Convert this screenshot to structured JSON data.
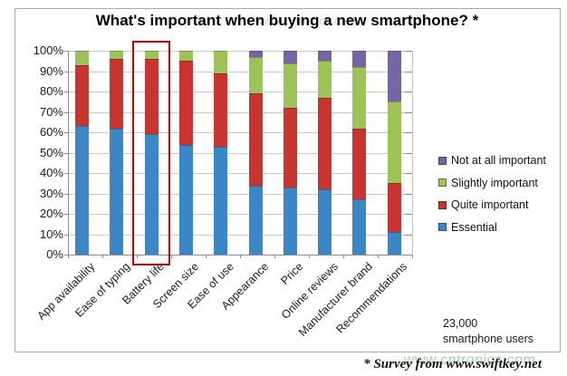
{
  "watermarks": {
    "top": "www.cntronics.com",
    "bottom": "www.cntronics.com"
  },
  "footer_note": "* Survey from www.swiftkey.net",
  "highlight": {
    "category": "Battery life",
    "color": "#CC0000"
  },
  "chart_data": {
    "type": "bar",
    "stacked": true,
    "title": "What's important when buying a new smartphone? *",
    "categories": [
      "App availability",
      "Ease of typing",
      "Battery life",
      "Screen size",
      "Ease of use",
      "Appearance",
      "Price",
      "Online reviews",
      "Manufacturer brand",
      "Recommendations"
    ],
    "series": [
      {
        "name": "Essential",
        "color": "#3A87C8",
        "values": [
          63,
          62,
          59,
          54,
          53,
          34,
          33,
          32,
          27,
          11
        ]
      },
      {
        "name": "Quite important",
        "color": "#C9342F",
        "values": [
          30,
          34,
          37,
          41,
          36,
          45,
          39,
          45,
          35,
          24
        ]
      },
      {
        "name": "Slightly important",
        "color": "#9CC355",
        "values": [
          7,
          4,
          4,
          5,
          11,
          18,
          22,
          18,
          30,
          40
        ]
      },
      {
        "name": "Not at all important",
        "color": "#7665A6",
        "values": [
          0,
          0,
          0,
          0,
          0,
          3,
          6,
          5,
          8,
          25
        ]
      }
    ],
    "legend": [
      {
        "label": "Not at all important",
        "color": "#7665A6"
      },
      {
        "label": "Slightly important",
        "color": "#9CC355"
      },
      {
        "label": "Quite important",
        "color": "#C9342F"
      },
      {
        "label": "Essential",
        "color": "#3A87C8"
      }
    ],
    "legend_position": "right",
    "grid": true,
    "ylim": [
      0,
      100
    ],
    "ytick_labels": [
      "0%",
      "10%",
      "20%",
      "30%",
      "40%",
      "50%",
      "60%",
      "70%",
      "80%",
      "90%",
      "100%"
    ],
    "annotation": {
      "line1": "23,000",
      "line2": "smartphone users"
    }
  }
}
